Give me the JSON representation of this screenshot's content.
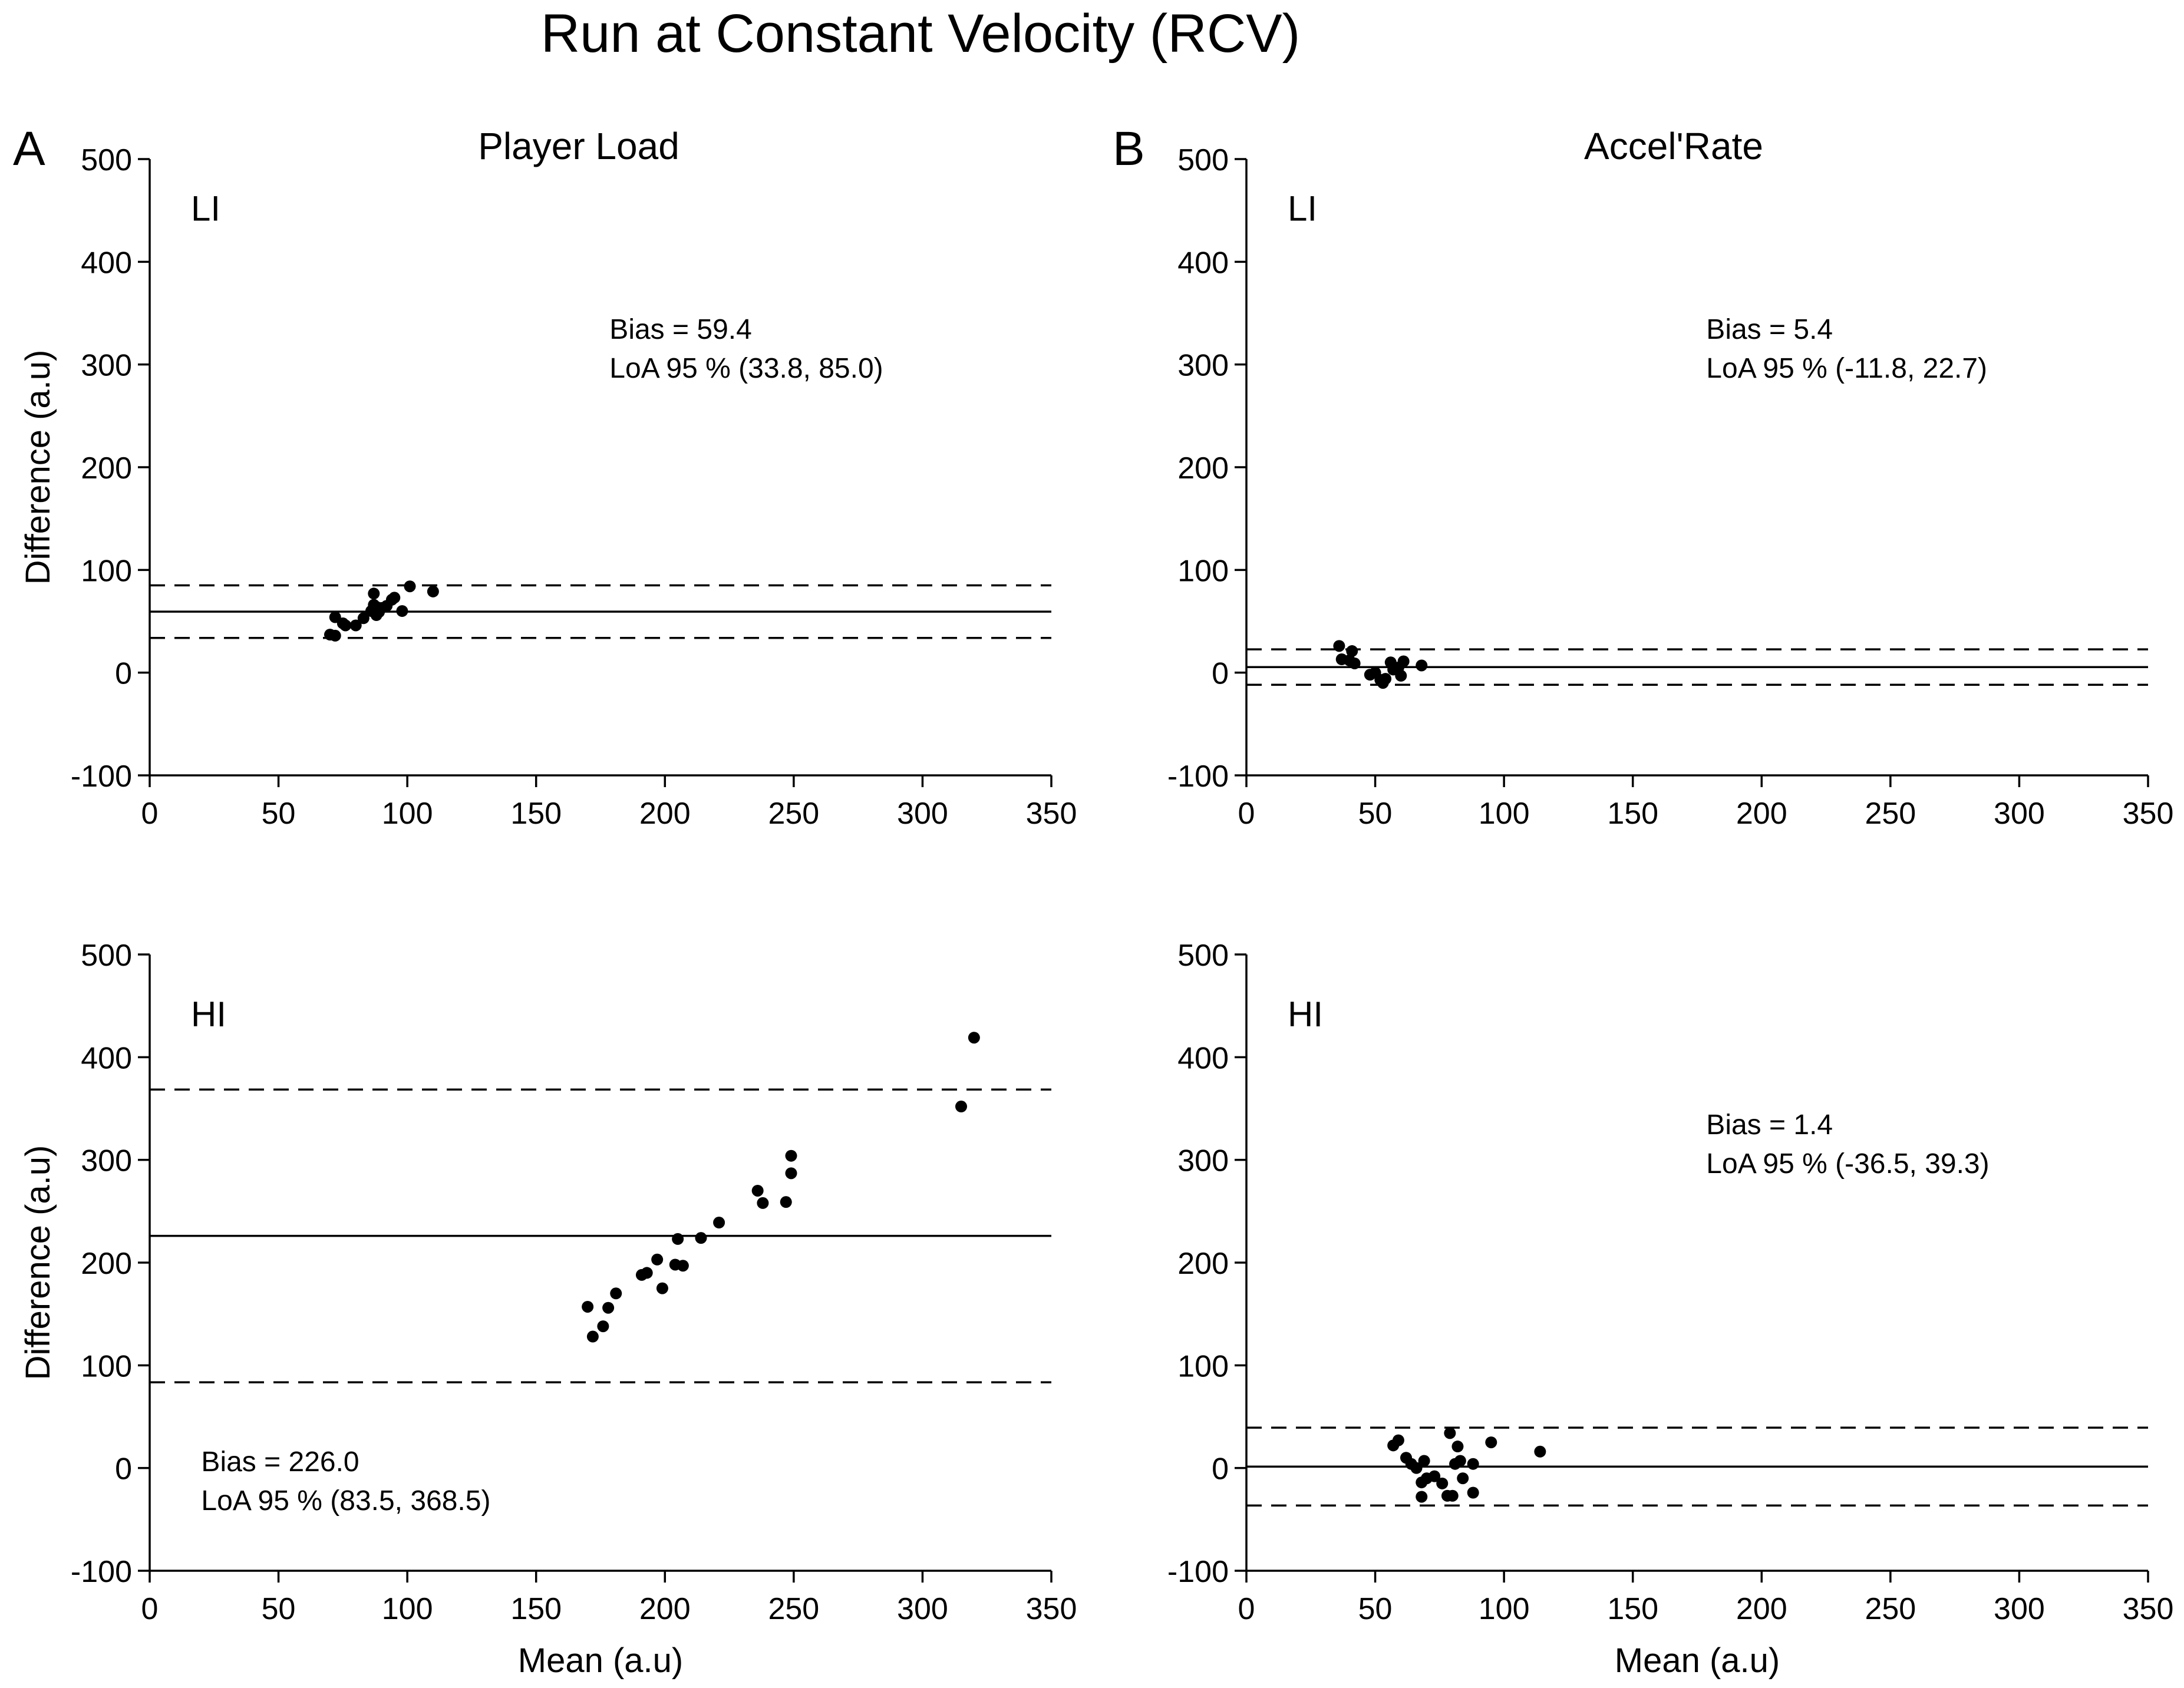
{
  "figure_title": "Run at Constant Velocity (RCV)",
  "panel_labels": [
    "A",
    "B"
  ],
  "column_titles": [
    "Player Load",
    "Accel'Rate"
  ],
  "chart_data": [
    {
      "type": "scatter",
      "panel": "A",
      "column_title": "Player Load",
      "condition": "LI",
      "xlabel": "",
      "ylabel": "Difference (a.u)",
      "xlim": [
        0,
        350
      ],
      "ylim": [
        -100,
        500
      ],
      "xticks": [
        0,
        50,
        100,
        150,
        200,
        250,
        300,
        350
      ],
      "yticks": [
        -100,
        0,
        100,
        200,
        300,
        400,
        500
      ],
      "bias": 59.4,
      "loa": [
        33.8,
        85.0
      ],
      "bias_text": "Bias = 59.4",
      "loa_text": "LoA 95 % (33.8, 85.0)",
      "annotation_position": "top-center",
      "points": [
        [
          70,
          37
        ],
        [
          72,
          36
        ],
        [
          72,
          54
        ],
        [
          75,
          48
        ],
        [
          76,
          46
        ],
        [
          80,
          46
        ],
        [
          83,
          53
        ],
        [
          86,
          60
        ],
        [
          87,
          66
        ],
        [
          87,
          77
        ],
        [
          88,
          56
        ],
        [
          88,
          64
        ],
        [
          89,
          59
        ],
        [
          90,
          63
        ],
        [
          92,
          65
        ],
        [
          94,
          71
        ],
        [
          95,
          73
        ],
        [
          98,
          60
        ],
        [
          101,
          84
        ],
        [
          110,
          79
        ]
      ]
    },
    {
      "type": "scatter",
      "panel": "B",
      "column_title": "Accel'Rate",
      "condition": "LI",
      "xlabel": "",
      "ylabel": "",
      "xlim": [
        0,
        350
      ],
      "ylim": [
        -100,
        500
      ],
      "xticks": [
        0,
        50,
        100,
        150,
        200,
        250,
        300,
        350
      ],
      "yticks": [
        -100,
        0,
        100,
        200,
        300,
        400,
        500
      ],
      "bias": 5.4,
      "loa": [
        -11.8,
        22.7
      ],
      "bias_text": "Bias = 5.4",
      "loa_text": "LoA 95 % (-11.8, 22.7)",
      "annotation_position": "top-center",
      "points": [
        [
          36,
          26
        ],
        [
          37,
          13
        ],
        [
          40,
          12
        ],
        [
          41,
          21
        ],
        [
          42,
          9
        ],
        [
          48,
          -2
        ],
        [
          50,
          0
        ],
        [
          52,
          -7
        ],
        [
          53,
          -10
        ],
        [
          54,
          -6
        ],
        [
          56,
          10
        ],
        [
          57,
          3
        ],
        [
          59,
          5
        ],
        [
          60,
          -3
        ],
        [
          61,
          11
        ],
        [
          68,
          7
        ]
      ]
    },
    {
      "type": "scatter",
      "panel": "",
      "column_title": "Player Load",
      "condition": "HI",
      "xlabel": "Mean (a.u)",
      "ylabel": "Difference (a.u)",
      "xlim": [
        0,
        350
      ],
      "ylim": [
        -100,
        500
      ],
      "xticks": [
        0,
        50,
        100,
        150,
        200,
        250,
        300,
        350
      ],
      "yticks": [
        -100,
        0,
        100,
        200,
        300,
        400,
        500
      ],
      "bias": 226.0,
      "loa": [
        83.5,
        368.5
      ],
      "bias_text": "Bias = 226.0",
      "loa_text": "LoA 95 % (83.5, 368.5)",
      "annotation_position": "bottom-left",
      "points": [
        [
          170,
          157
        ],
        [
          172,
          128
        ],
        [
          176,
          138
        ],
        [
          178,
          156
        ],
        [
          181,
          170
        ],
        [
          191,
          188
        ],
        [
          193,
          190
        ],
        [
          197,
          203
        ],
        [
          199,
          175
        ],
        [
          204,
          198
        ],
        [
          205,
          223
        ],
        [
          207,
          197
        ],
        [
          214,
          224
        ],
        [
          221,
          239
        ],
        [
          236,
          270
        ],
        [
          238,
          258
        ],
        [
          247,
          259
        ],
        [
          249,
          287
        ],
        [
          249,
          304
        ],
        [
          315,
          352
        ],
        [
          320,
          419
        ]
      ]
    },
    {
      "type": "scatter",
      "panel": "",
      "column_title": "Accel'Rate",
      "condition": "HI",
      "xlabel": "Mean (a.u)",
      "ylabel": "",
      "xlim": [
        0,
        350
      ],
      "ylim": [
        -100,
        500
      ],
      "xticks": [
        0,
        50,
        100,
        150,
        200,
        250,
        300,
        350
      ],
      "yticks": [
        -100,
        0,
        100,
        200,
        300,
        400,
        500
      ],
      "bias": 1.4,
      "loa": [
        -36.5,
        39.3
      ],
      "bias_text": "Bias = 1.4",
      "loa_text": "LoA 95 % (-36.5, 39.3)",
      "annotation_position": "top-center",
      "points": [
        [
          57,
          22
        ],
        [
          59,
          27
        ],
        [
          62,
          10
        ],
        [
          64,
          4
        ],
        [
          66,
          0
        ],
        [
          68,
          -28
        ],
        [
          68,
          -14
        ],
        [
          69,
          7
        ],
        [
          70,
          -10
        ],
        [
          73,
          -8
        ],
        [
          76,
          -15
        ],
        [
          78,
          -27
        ],
        [
          79,
          34
        ],
        [
          80,
          -27
        ],
        [
          81,
          4
        ],
        [
          82,
          21
        ],
        [
          83,
          7
        ],
        [
          84,
          -10
        ],
        [
          88,
          4
        ],
        [
          88,
          -24
        ],
        [
          95,
          25
        ],
        [
          114,
          16
        ]
      ]
    }
  ]
}
